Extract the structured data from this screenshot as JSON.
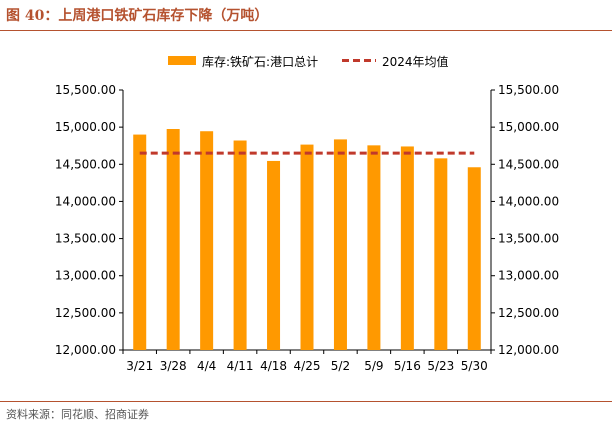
{
  "header": {
    "title": "图 40：上周港口铁矿石库存下降（万吨）"
  },
  "footer": {
    "source": "资料来源：同花顺、招商证券"
  },
  "chart_data": {
    "type": "bar",
    "categories": [
      "3/21",
      "3/28",
      "4/4",
      "4/11",
      "4/18",
      "4/25",
      "5/2",
      "5/9",
      "5/16",
      "5/23",
      "5/30"
    ],
    "series": [
      {
        "name": "库存:铁矿石:港口总计",
        "type": "bar",
        "color": "#ff9900",
        "values": [
          14900,
          14975,
          14945,
          14820,
          14545,
          14765,
          14835,
          14755,
          14740,
          14580,
          14460
        ]
      },
      {
        "name": "2024年均值",
        "type": "line",
        "style": "dashed",
        "color": "#c0392b",
        "values": [
          14650,
          14650,
          14650,
          14650,
          14650,
          14650,
          14650,
          14650,
          14650,
          14650,
          14650
        ]
      }
    ],
    "ylim": [
      12000,
      15500
    ],
    "y_ticks": [
      12000,
      12500,
      13000,
      13500,
      14000,
      14500,
      15000,
      15500
    ],
    "y_tick_labels": [
      "12,000.00",
      "12,500.00",
      "13,000.00",
      "13,500.00",
      "14,000.00",
      "14,500.00",
      "15,000.00",
      "15,500.00"
    ],
    "secondary_axis": true,
    "legend": "top-center",
    "grid": false
  }
}
